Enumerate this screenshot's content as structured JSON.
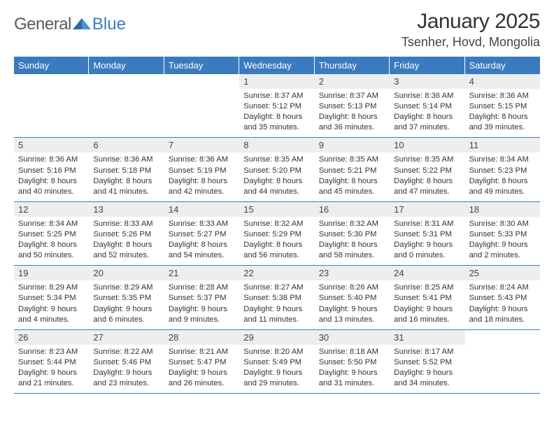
{
  "logo": {
    "text1": "General",
    "text2": "Blue"
  },
  "title": "January 2025",
  "location": "Tsenher, Hovd, Mongolia",
  "colors": {
    "header_bg": "#3a7bbf",
    "header_text": "#ffffff",
    "daynum_bg": "#eeeeee",
    "border": "#3a7bbf",
    "text": "#333333",
    "background": "#ffffff"
  },
  "weekdays": [
    "Sunday",
    "Monday",
    "Tuesday",
    "Wednesday",
    "Thursday",
    "Friday",
    "Saturday"
  ],
  "weeks": [
    [
      {
        "day": "",
        "sunrise": "",
        "sunset": "",
        "daylight1": "",
        "daylight2": ""
      },
      {
        "day": "",
        "sunrise": "",
        "sunset": "",
        "daylight1": "",
        "daylight2": ""
      },
      {
        "day": "",
        "sunrise": "",
        "sunset": "",
        "daylight1": "",
        "daylight2": ""
      },
      {
        "day": "1",
        "sunrise": "Sunrise: 8:37 AM",
        "sunset": "Sunset: 5:12 PM",
        "daylight1": "Daylight: 8 hours",
        "daylight2": "and 35 minutes."
      },
      {
        "day": "2",
        "sunrise": "Sunrise: 8:37 AM",
        "sunset": "Sunset: 5:13 PM",
        "daylight1": "Daylight: 8 hours",
        "daylight2": "and 36 minutes."
      },
      {
        "day": "3",
        "sunrise": "Sunrise: 8:36 AM",
        "sunset": "Sunset: 5:14 PM",
        "daylight1": "Daylight: 8 hours",
        "daylight2": "and 37 minutes."
      },
      {
        "day": "4",
        "sunrise": "Sunrise: 8:36 AM",
        "sunset": "Sunset: 5:15 PM",
        "daylight1": "Daylight: 8 hours",
        "daylight2": "and 39 minutes."
      }
    ],
    [
      {
        "day": "5",
        "sunrise": "Sunrise: 8:36 AM",
        "sunset": "Sunset: 5:16 PM",
        "daylight1": "Daylight: 8 hours",
        "daylight2": "and 40 minutes."
      },
      {
        "day": "6",
        "sunrise": "Sunrise: 8:36 AM",
        "sunset": "Sunset: 5:18 PM",
        "daylight1": "Daylight: 8 hours",
        "daylight2": "and 41 minutes."
      },
      {
        "day": "7",
        "sunrise": "Sunrise: 8:36 AM",
        "sunset": "Sunset: 5:19 PM",
        "daylight1": "Daylight: 8 hours",
        "daylight2": "and 42 minutes."
      },
      {
        "day": "8",
        "sunrise": "Sunrise: 8:35 AM",
        "sunset": "Sunset: 5:20 PM",
        "daylight1": "Daylight: 8 hours",
        "daylight2": "and 44 minutes."
      },
      {
        "day": "9",
        "sunrise": "Sunrise: 8:35 AM",
        "sunset": "Sunset: 5:21 PM",
        "daylight1": "Daylight: 8 hours",
        "daylight2": "and 45 minutes."
      },
      {
        "day": "10",
        "sunrise": "Sunrise: 8:35 AM",
        "sunset": "Sunset: 5:22 PM",
        "daylight1": "Daylight: 8 hours",
        "daylight2": "and 47 minutes."
      },
      {
        "day": "11",
        "sunrise": "Sunrise: 8:34 AM",
        "sunset": "Sunset: 5:23 PM",
        "daylight1": "Daylight: 8 hours",
        "daylight2": "and 49 minutes."
      }
    ],
    [
      {
        "day": "12",
        "sunrise": "Sunrise: 8:34 AM",
        "sunset": "Sunset: 5:25 PM",
        "daylight1": "Daylight: 8 hours",
        "daylight2": "and 50 minutes."
      },
      {
        "day": "13",
        "sunrise": "Sunrise: 8:33 AM",
        "sunset": "Sunset: 5:26 PM",
        "daylight1": "Daylight: 8 hours",
        "daylight2": "and 52 minutes."
      },
      {
        "day": "14",
        "sunrise": "Sunrise: 8:33 AM",
        "sunset": "Sunset: 5:27 PM",
        "daylight1": "Daylight: 8 hours",
        "daylight2": "and 54 minutes."
      },
      {
        "day": "15",
        "sunrise": "Sunrise: 8:32 AM",
        "sunset": "Sunset: 5:29 PM",
        "daylight1": "Daylight: 8 hours",
        "daylight2": "and 56 minutes."
      },
      {
        "day": "16",
        "sunrise": "Sunrise: 8:32 AM",
        "sunset": "Sunset: 5:30 PM",
        "daylight1": "Daylight: 8 hours",
        "daylight2": "and 58 minutes."
      },
      {
        "day": "17",
        "sunrise": "Sunrise: 8:31 AM",
        "sunset": "Sunset: 5:31 PM",
        "daylight1": "Daylight: 9 hours",
        "daylight2": "and 0 minutes."
      },
      {
        "day": "18",
        "sunrise": "Sunrise: 8:30 AM",
        "sunset": "Sunset: 5:33 PM",
        "daylight1": "Daylight: 9 hours",
        "daylight2": "and 2 minutes."
      }
    ],
    [
      {
        "day": "19",
        "sunrise": "Sunrise: 8:29 AM",
        "sunset": "Sunset: 5:34 PM",
        "daylight1": "Daylight: 9 hours",
        "daylight2": "and 4 minutes."
      },
      {
        "day": "20",
        "sunrise": "Sunrise: 8:29 AM",
        "sunset": "Sunset: 5:35 PM",
        "daylight1": "Daylight: 9 hours",
        "daylight2": "and 6 minutes."
      },
      {
        "day": "21",
        "sunrise": "Sunrise: 8:28 AM",
        "sunset": "Sunset: 5:37 PM",
        "daylight1": "Daylight: 9 hours",
        "daylight2": "and 9 minutes."
      },
      {
        "day": "22",
        "sunrise": "Sunrise: 8:27 AM",
        "sunset": "Sunset: 5:38 PM",
        "daylight1": "Daylight: 9 hours",
        "daylight2": "and 11 minutes."
      },
      {
        "day": "23",
        "sunrise": "Sunrise: 8:26 AM",
        "sunset": "Sunset: 5:40 PM",
        "daylight1": "Daylight: 9 hours",
        "daylight2": "and 13 minutes."
      },
      {
        "day": "24",
        "sunrise": "Sunrise: 8:25 AM",
        "sunset": "Sunset: 5:41 PM",
        "daylight1": "Daylight: 9 hours",
        "daylight2": "and 16 minutes."
      },
      {
        "day": "25",
        "sunrise": "Sunrise: 8:24 AM",
        "sunset": "Sunset: 5:43 PM",
        "daylight1": "Daylight: 9 hours",
        "daylight2": "and 18 minutes."
      }
    ],
    [
      {
        "day": "26",
        "sunrise": "Sunrise: 8:23 AM",
        "sunset": "Sunset: 5:44 PM",
        "daylight1": "Daylight: 9 hours",
        "daylight2": "and 21 minutes."
      },
      {
        "day": "27",
        "sunrise": "Sunrise: 8:22 AM",
        "sunset": "Sunset: 5:46 PM",
        "daylight1": "Daylight: 9 hours",
        "daylight2": "and 23 minutes."
      },
      {
        "day": "28",
        "sunrise": "Sunrise: 8:21 AM",
        "sunset": "Sunset: 5:47 PM",
        "daylight1": "Daylight: 9 hours",
        "daylight2": "and 26 minutes."
      },
      {
        "day": "29",
        "sunrise": "Sunrise: 8:20 AM",
        "sunset": "Sunset: 5:49 PM",
        "daylight1": "Daylight: 9 hours",
        "daylight2": "and 29 minutes."
      },
      {
        "day": "30",
        "sunrise": "Sunrise: 8:18 AM",
        "sunset": "Sunset: 5:50 PM",
        "daylight1": "Daylight: 9 hours",
        "daylight2": "and 31 minutes."
      },
      {
        "day": "31",
        "sunrise": "Sunrise: 8:17 AM",
        "sunset": "Sunset: 5:52 PM",
        "daylight1": "Daylight: 9 hours",
        "daylight2": "and 34 minutes."
      },
      {
        "day": "",
        "sunrise": "",
        "sunset": "",
        "daylight1": "",
        "daylight2": ""
      }
    ]
  ]
}
